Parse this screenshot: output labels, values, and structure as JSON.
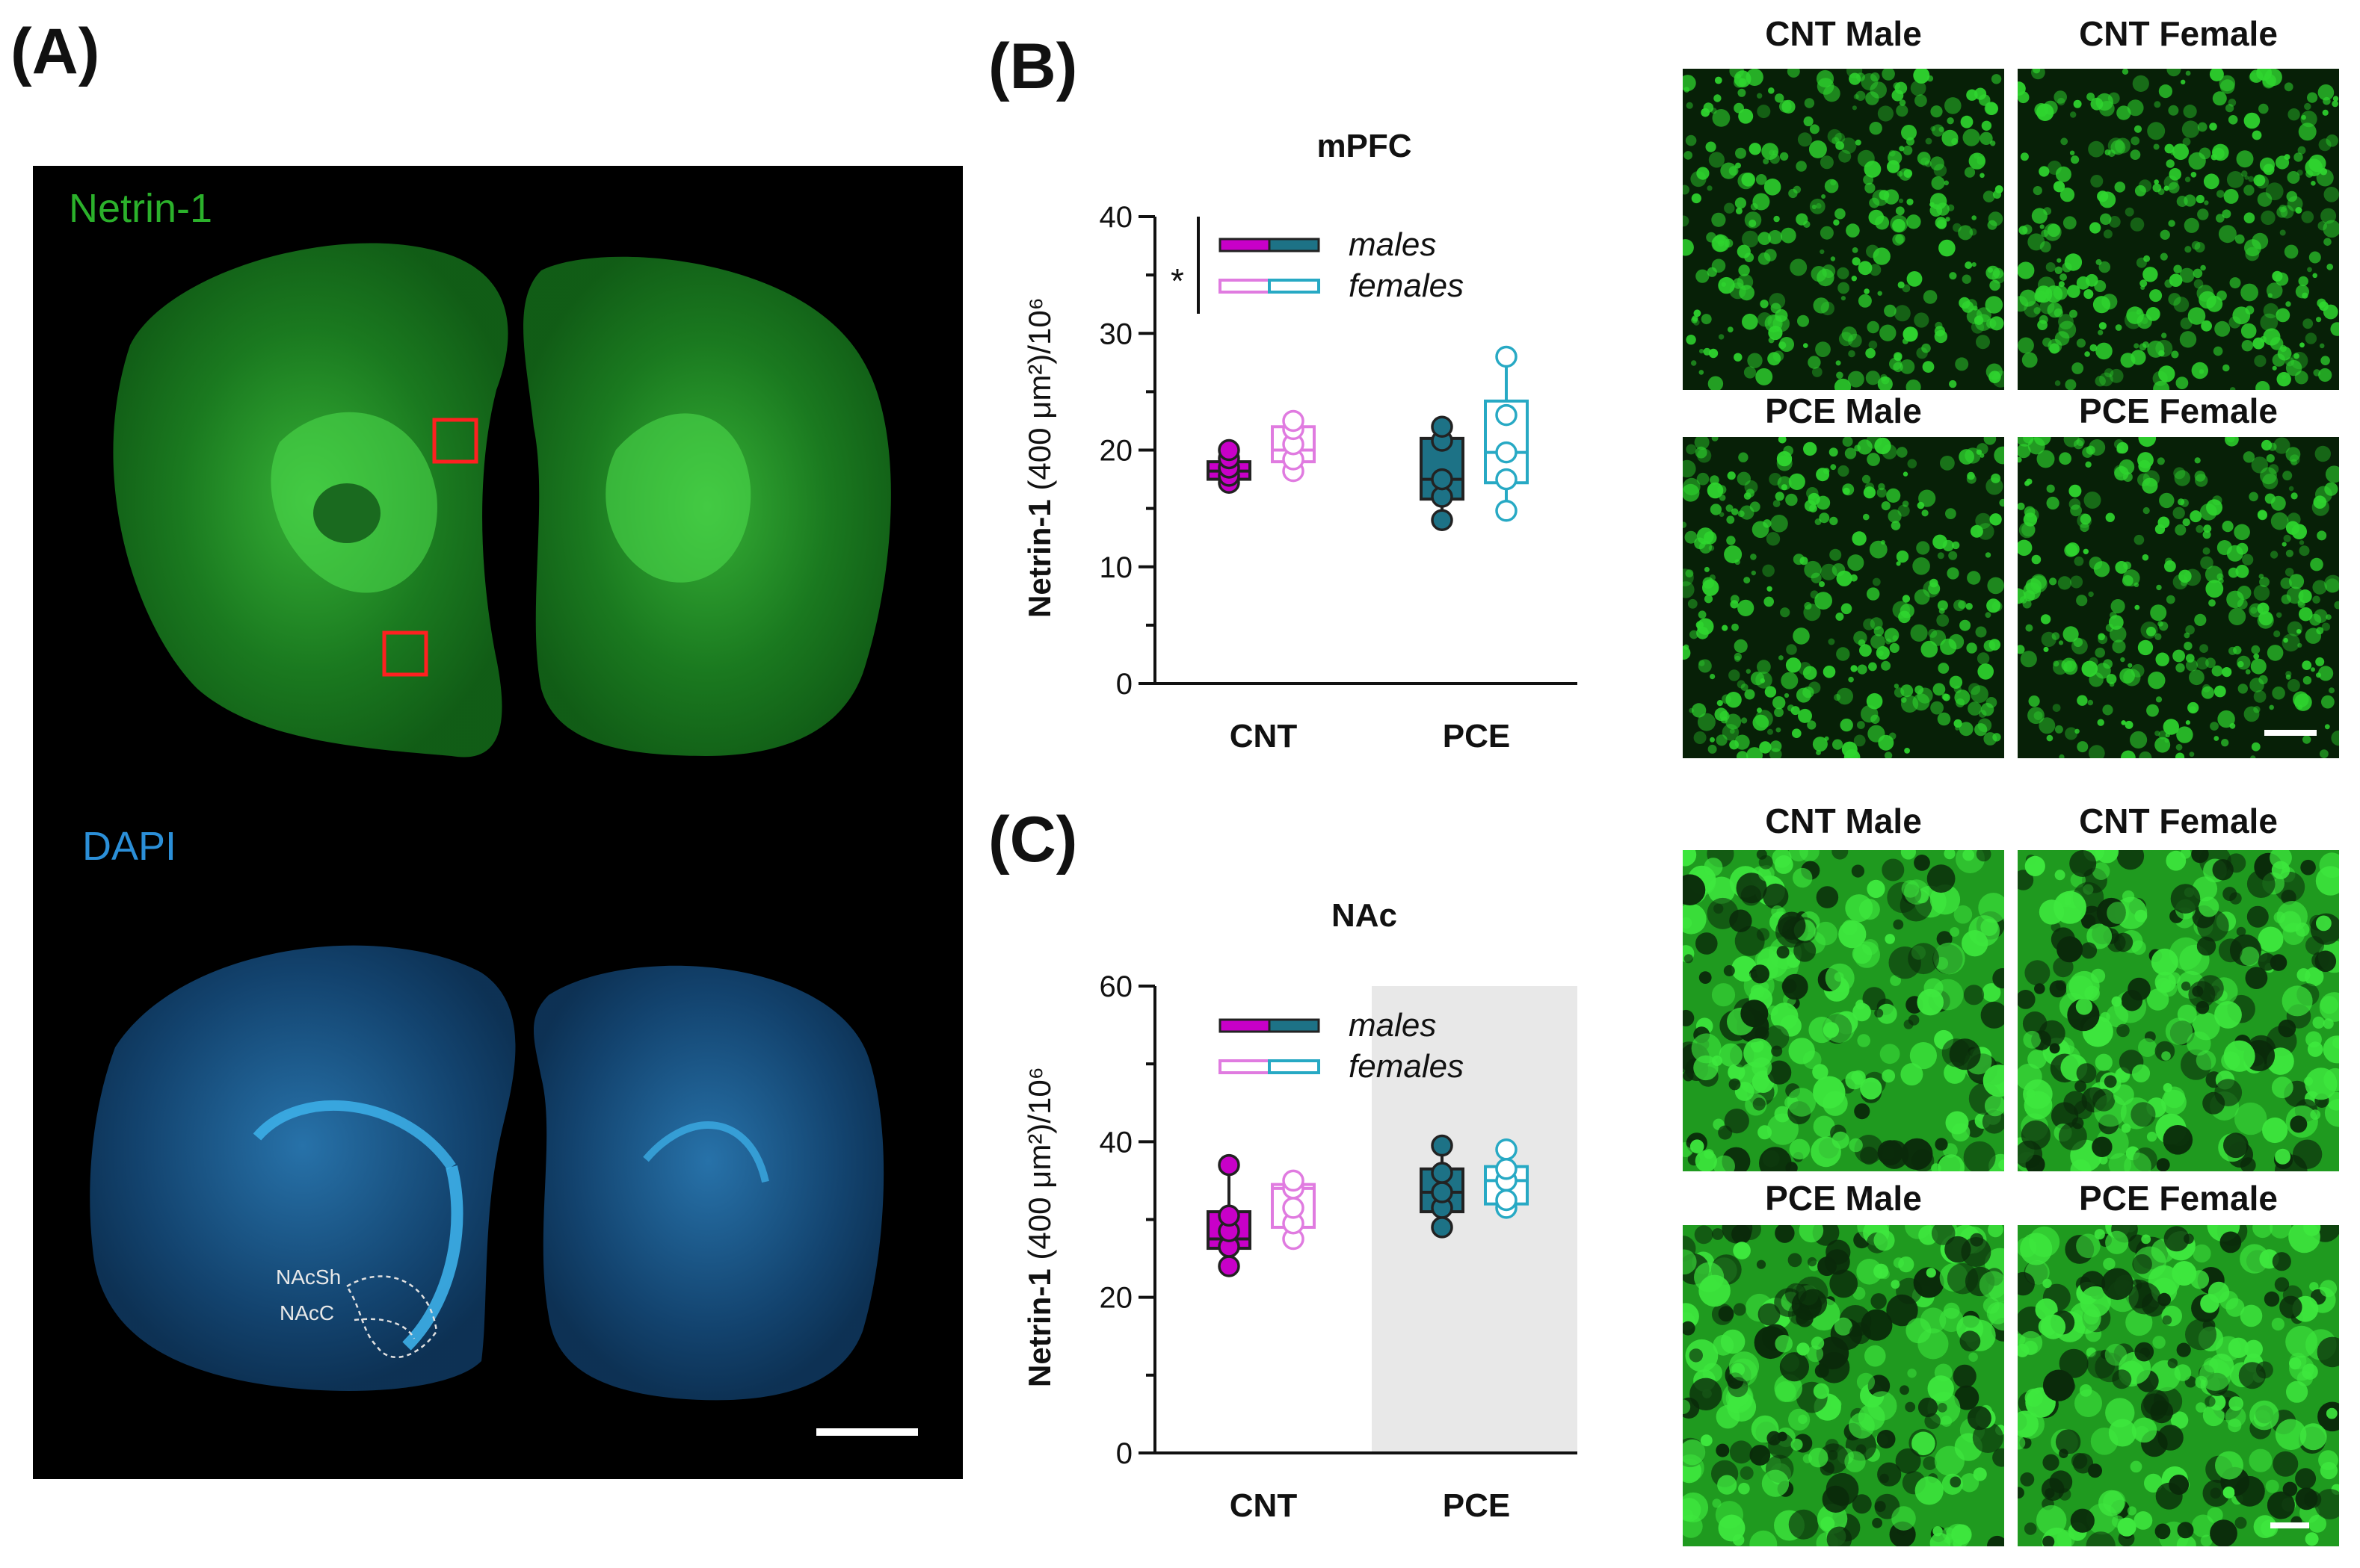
{
  "panels": {
    "a": {
      "label": "(A)",
      "netrin_label": "Netrin-1",
      "dapi_label": "DAPI",
      "region_labels": [
        "NAcSh",
        "NAcC"
      ]
    },
    "b": {
      "label": "(B)"
    },
    "c": {
      "label": "(C)"
    }
  },
  "micrographs": {
    "mpfc": [
      "CNT Male",
      "CNT Female",
      "PCE Male",
      "PCE Female"
    ],
    "nac": [
      "CNT Male",
      "CNT Female",
      "PCE Male",
      "PCE Female"
    ]
  },
  "colors": {
    "cnt_male": "#c800c8",
    "cnt_female": "#e07be0",
    "pce_male": "#1d7286",
    "pce_female": "#27a9c4",
    "netrin_green": "#2bd12b",
    "dapi_blue": "#2b9fe0"
  },
  "chart_data": [
    {
      "type": "box",
      "title": "mPFC",
      "ylabel_bold": "Netrin-1",
      "ylabel_rest": "(400 μm²)/10⁶",
      "ylim": [
        0,
        40
      ],
      "yticks": [
        0,
        10,
        20,
        30,
        40
      ],
      "categories": [
        "CNT",
        "PCE"
      ],
      "legend": [
        "males",
        "females"
      ],
      "significance": "*",
      "shaded_category": null,
      "boxes": [
        {
          "group": "CNT",
          "sex": "males",
          "min": 17.0,
          "q1": 17.5,
          "median": 18.2,
          "q3": 19.0,
          "max": 20.0,
          "points": [
            17.2,
            17.8,
            18.5,
            19.3,
            20.0
          ]
        },
        {
          "group": "CNT",
          "sex": "females",
          "min": 18.0,
          "q1": 19.0,
          "median": 20.0,
          "q3": 22.0,
          "max": 22.5,
          "points": [
            18.2,
            19.2,
            20.5,
            21.8,
            22.5
          ]
        },
        {
          "group": "PCE",
          "sex": "males",
          "min": 13.8,
          "q1": 15.8,
          "median": 17.5,
          "q3": 21.0,
          "max": 22.0,
          "points": [
            14.0,
            16.0,
            17.5,
            20.8,
            22.0
          ]
        },
        {
          "group": "PCE",
          "sex": "females",
          "min": 14.8,
          "q1": 17.2,
          "median": 19.8,
          "q3": 24.2,
          "max": 28.0,
          "points": [
            14.8,
            17.5,
            19.8,
            23.0,
            28.0
          ]
        }
      ]
    },
    {
      "type": "box",
      "title": "NAc",
      "ylabel_bold": "Netrin-1",
      "ylabel_rest": "(400 μm²)/10⁶",
      "ylim": [
        0,
        60
      ],
      "yticks": [
        0,
        20,
        40,
        60
      ],
      "categories": [
        "CNT",
        "PCE"
      ],
      "legend": [
        "males",
        "females"
      ],
      "significance": "",
      "shaded_category": "PCE",
      "boxes": [
        {
          "group": "CNT",
          "sex": "males",
          "min": 24.0,
          "q1": 26.3,
          "median": 27.5,
          "q3": 31.0,
          "max": 37.0,
          "points": [
            24.0,
            26.5,
            28.5,
            30.5,
            37.0
          ]
        },
        {
          "group": "CNT",
          "sex": "females",
          "min": 27.0,
          "q1": 29.0,
          "median": 34.0,
          "q3": 34.5,
          "max": 35.0,
          "points": [
            27.5,
            29.5,
            31.5,
            34.0,
            35.0
          ]
        },
        {
          "group": "PCE",
          "sex": "males",
          "min": 29.0,
          "q1": 31.0,
          "median": 33.5,
          "q3": 36.5,
          "max": 39.5,
          "points": [
            29.0,
            31.5,
            33.5,
            36.0,
            39.5
          ]
        },
        {
          "group": "PCE",
          "sex": "females",
          "min": 31.5,
          "q1": 32.0,
          "median": 35.0,
          "q3": 36.8,
          "max": 39.0,
          "points": [
            31.5,
            32.5,
            35.0,
            36.5,
            39.0
          ]
        }
      ]
    }
  ]
}
